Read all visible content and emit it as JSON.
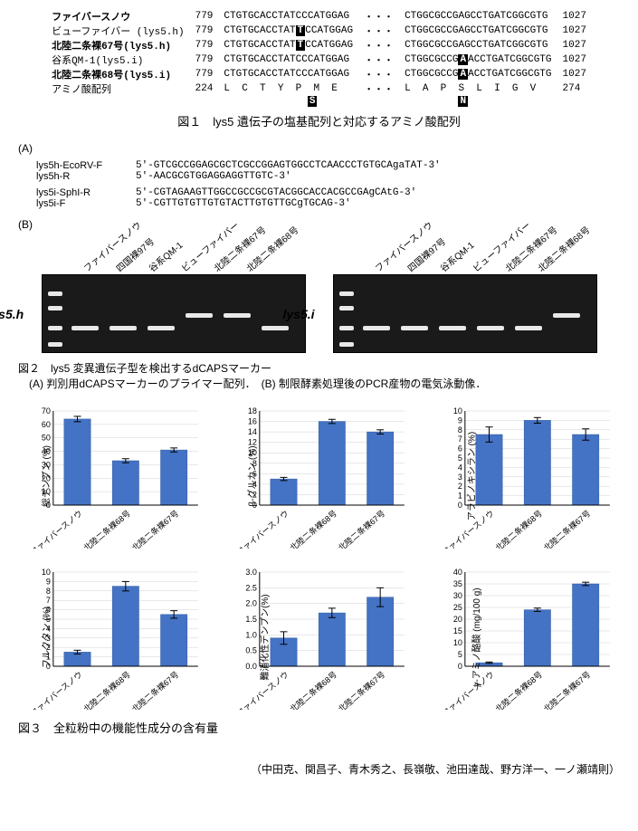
{
  "sequences": {
    "rows": [
      {
        "name": "ファイバースノウ",
        "italic": false,
        "bold": true,
        "start": 779,
        "seq_left": "CTGTGCACCTATCCCATGGAG",
        "seq_right": "CTGGCGCCGAGCCTGATCGGCGTG",
        "end": 1027,
        "mut_left": null,
        "mut_right": null
      },
      {
        "name": "ビューファイバー (lys5.h)",
        "italic": true,
        "bold": false,
        "start": 779,
        "seq_left": "CTGTGCACCTATCCATGGAG",
        "seq_right": "CTGGCGCCGAGCCTGATCGGCGTG",
        "end": 1027,
        "mut_left": "T",
        "mut_left_pos": 12,
        "mut_right": null
      },
      {
        "name": "北陸二条裸67号(lys5.h)",
        "italic": true,
        "bold": true,
        "start": 779,
        "seq_left": "CTGTGCACCTATCCATGGAG",
        "seq_right": "CTGGCGCCGAGCCTGATCGGCGTG",
        "end": 1027,
        "mut_left": "T",
        "mut_left_pos": 12,
        "mut_right": null
      },
      {
        "name": "谷系QM-1(lys5.i)",
        "italic": true,
        "bold": false,
        "start": 779,
        "seq_left": "CTGTGCACCTATCCCATGGAG",
        "seq_right": "CTGGCGCCGACCTGATCGGCGTG",
        "end": 1027,
        "mut_left": null,
        "mut_right": "A",
        "mut_right_pos": 9
      },
      {
        "name": "北陸二条裸68号(lys5.i)",
        "italic": true,
        "bold": true,
        "start": 779,
        "seq_left": "CTGTGCACCTATCCCATGGAG",
        "seq_right": "CTGGCGCCGACCTGATCGGCGTG",
        "end": 1027,
        "mut_left": null,
        "mut_right": "A",
        "mut_right_pos": 9
      },
      {
        "name": "アミノ酸配列",
        "italic": false,
        "bold": false,
        "start": 224,
        "seq_left": "L  C  T  Y  P  M  E",
        "seq_right": "L  A  P  S  L  I  G  V",
        "end": 274,
        "mut_below_left": "S",
        "mut_below_right": "N"
      }
    ],
    "ellipsis": "・・・"
  },
  "fig1_caption": "図１　lys5 遺伝子の塩基配列と対応するアミノ酸配列",
  "primers": {
    "groups": [
      [
        {
          "name": "lys5h-EcoRV-F",
          "seq": "5'-GTCGCCGGAGCGCTCGCCGGAGTGGCCTCAACCCTGTGCAgaTAT-3'"
        },
        {
          "name": "lys5h-R",
          "seq": "5'-AACGCGTGGAGGAGGTTGTC-3'"
        }
      ],
      [
        {
          "name": "lys5i-SphI-R",
          "seq": "5'-CGTAGAAGTTGGCCGCCGCGTACGGCACCACGCCGAgCAtG-3'"
        },
        {
          "name": "lys5i-F",
          "seq": "5'-CGTTGTGTTGTGTACTTGTGTTGCgTGCAG-3'"
        }
      ]
    ]
  },
  "panel_labels": {
    "A": "(A)",
    "B": "(B)"
  },
  "gel": {
    "lane_labels": [
      "ファイバースノウ",
      "四国裸97号",
      "谷系QM-1",
      "ビューファイバー",
      "北陸二条裸67号",
      "北陸二条裸68号"
    ],
    "left_title": "lys5.h",
    "right_title": "lys5.i",
    "ladder_bands": [
      18,
      34,
      56,
      74
    ],
    "left_bands_y": [
      56,
      56,
      56,
      42,
      42,
      56
    ],
    "right_bands_y": [
      56,
      56,
      56,
      56,
      56,
      42
    ],
    "band_color": "#e8e8e8",
    "gel_bg": "#1a1a1a"
  },
  "fig2_caption_title": "図２　lys5 変異遺伝子型を検出するdCAPSマーカー",
  "fig2_caption_body": "　(A) 判別用dCAPSマーカーのプライマー配列．　(B) 制限酵素処理後のPCR産物の電気泳動像．",
  "charts_common": {
    "categories": [
      "ファイバースノウ",
      "北陸二条裸68号",
      "北陸二条裸67号"
    ],
    "bar_color": "#4472c4",
    "bar_border": "#2e5aa0",
    "grid_color": "#d0d0d0",
    "bg": "#ffffff",
    "bar_width": 0.55,
    "label_fontsize": 10,
    "tick_fontsize": 9
  },
  "charts": [
    {
      "ylabel": "総デンプン (%)",
      "ylim": [
        0,
        70
      ],
      "ystep": 10,
      "values": [
        64,
        33,
        41
      ],
      "err": [
        2,
        1.5,
        1.5
      ]
    },
    {
      "ylabel": "β-グルカン (%)",
      "ylim": [
        0,
        18
      ],
      "ystep": 2,
      "values": [
        5,
        16,
        14
      ],
      "err": [
        0.3,
        0.4,
        0.4
      ]
    },
    {
      "ylabel": "アラビノキシラン (%)",
      "ylim": [
        0,
        10
      ],
      "ystep": 1,
      "values": [
        7.5,
        9,
        7.5
      ],
      "err": [
        0.8,
        0.3,
        0.6
      ]
    },
    {
      "ylabel": "フルクタン (%)",
      "ylim": [
        0,
        10
      ],
      "ystep": 1,
      "values": [
        1.5,
        8.5,
        5.5
      ],
      "err": [
        0.2,
        0.5,
        0.4
      ]
    },
    {
      "ylabel": "難消化性デンプン(%)",
      "ylim": [
        0,
        3.0
      ],
      "ystep": 0.5,
      "values": [
        0.9,
        1.7,
        2.2
      ],
      "err": [
        0.2,
        0.15,
        0.3
      ]
    },
    {
      "ylabel": "γ-アミノ酪酸 (mg/100 g)",
      "ylim": [
        0,
        40
      ],
      "ystep": 5,
      "values": [
        1.5,
        24,
        35
      ],
      "err": [
        0.3,
        0.7,
        0.7
      ]
    }
  ],
  "fig3_caption": "図３　全粒粉中の機能性成分の含有量",
  "authors": "（中田克、関昌子、青木秀之、長嶺敬、池田達哉、野方洋一、一ノ瀬靖則）"
}
